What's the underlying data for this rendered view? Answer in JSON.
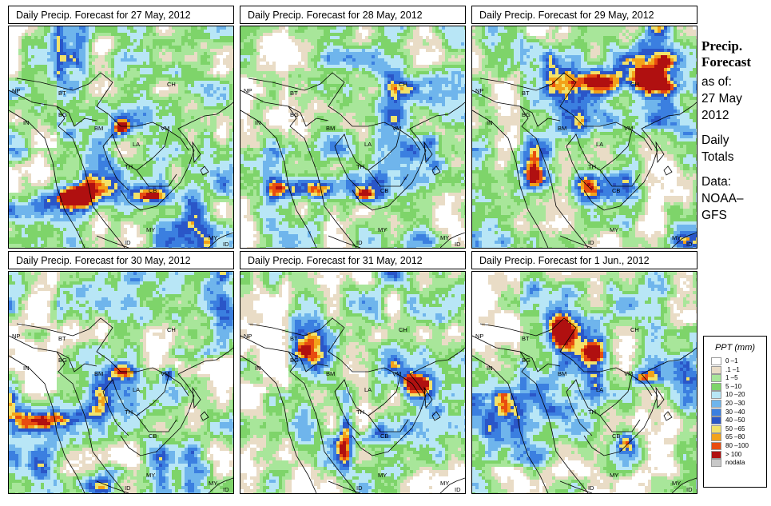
{
  "panels": [
    {
      "title": "Daily Precip. Forecast for  27 May, 2012"
    },
    {
      "title": "Daily Precip. Forecast for  28 May, 2012"
    },
    {
      "title": "Daily Precip. Forecast for  29 May, 2012"
    },
    {
      "title": "Daily Precip. Forecast for  30 May, 2012"
    },
    {
      "title": "Daily Precip. Forecast for  31 May, 2012"
    },
    {
      "title": "Daily Precip. Forecast for  1 Jun., 2012"
    }
  ],
  "map_labels": {
    "np": "NP",
    "bt": "BT",
    "bg": "BG",
    "in": "IN",
    "ch": "CH",
    "bm": "BM",
    "vm": "VM",
    "la": "LA",
    "th": "TH",
    "cb": "CB",
    "my": "MY",
    "id": "ID"
  },
  "side": {
    "title1": "Precip.",
    "title2": "Forecast",
    "line1": "as of:",
    "line2": "27 May",
    "line3": "2012",
    "line4": "Daily",
    "line5": "Totals",
    "line6": "Data:",
    "line7": "NOAA–",
    "line8": "GFS"
  },
  "legend": {
    "title": "PPT (mm)",
    "items": [
      {
        "label": "0 –1",
        "color": "#ffffff"
      },
      {
        "label": ".1 –1",
        "color": "#e9dcc6"
      },
      {
        "label": "1 –5",
        "color": "#a8e69a"
      },
      {
        "label": "5 –10",
        "color": "#7ed46a"
      },
      {
        "label": "10 –20",
        "color": "#b8e6f6"
      },
      {
        "label": "20 –30",
        "color": "#6fb5ec"
      },
      {
        "label": "30 –40",
        "color": "#3b7fe0"
      },
      {
        "label": "40 –50",
        "color": "#2a56c8"
      },
      {
        "label": "50 –65",
        "color": "#f2e26a"
      },
      {
        "label": "65 –80",
        "color": "#f2a21a"
      },
      {
        "label": "80 –100",
        "color": "#e84c10"
      },
      {
        "label": "> 100",
        "color": "#b01010"
      },
      {
        "label": "nodata",
        "color": "#c8c8c8"
      }
    ]
  }
}
